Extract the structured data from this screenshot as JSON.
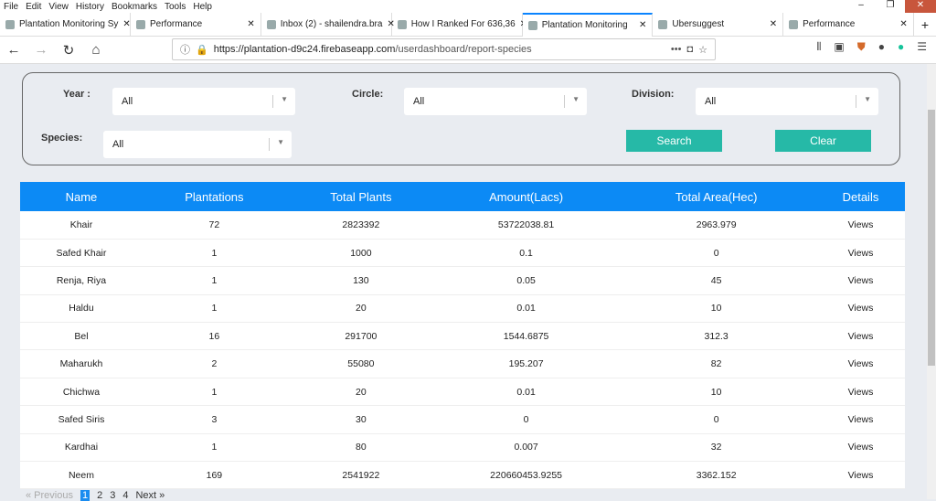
{
  "browser": {
    "menu": [
      "File",
      "Edit",
      "View",
      "History",
      "Bookmarks",
      "Tools",
      "Help"
    ],
    "tabs": [
      {
        "title": "Plantation Monitoring Sy",
        "active": false
      },
      {
        "title": "Performance",
        "active": false
      },
      {
        "title": "Inbox (2) - shailendra.bra",
        "active": false
      },
      {
        "title": "How I Ranked For 636,36",
        "active": false
      },
      {
        "title": "Plantation Monitoring",
        "active": true
      },
      {
        "title": "Ubersuggest",
        "active": false
      },
      {
        "title": "Performance",
        "active": false
      }
    ],
    "url_host": "https://plantation-d9c24.firebaseapp.com",
    "url_path": "/userdashboard/report-species"
  },
  "filters": {
    "year_label": "Year :",
    "year_value": "All",
    "circle_label": "Circle:",
    "circle_value": "All",
    "division_label": "Division:",
    "division_value": "All",
    "species_label": "Species:",
    "species_value": "All",
    "search": "Search",
    "clear": "Clear",
    "accent": "#26b9a7"
  },
  "table": {
    "header_color": "#0c8af5",
    "columns": [
      "Name",
      "Plantations",
      "Total Plants",
      "Amount(Lacs)",
      "Total Area(Hec)",
      "Details"
    ],
    "rows": [
      [
        "Khair",
        "72",
        "2823392",
        "53722038.81",
        "2963.979",
        "Views"
      ],
      [
        "Safed Khair",
        "1",
        "1000",
        "0.1",
        "0",
        "Views"
      ],
      [
        "Renja, Riya",
        "1",
        "130",
        "0.05",
        "45",
        "Views"
      ],
      [
        "Haldu",
        "1",
        "20",
        "0.01",
        "10",
        "Views"
      ],
      [
        "Bel",
        "16",
        "291700",
        "1544.6875",
        "312.3",
        "Views"
      ],
      [
        "Maharukh",
        "2",
        "55080",
        "195.207",
        "82",
        "Views"
      ],
      [
        "Chichwa",
        "1",
        "20",
        "0.01",
        "10",
        "Views"
      ],
      [
        "Safed Siris",
        "3",
        "30",
        "0",
        "0",
        "Views"
      ],
      [
        "Kardhai",
        "1",
        "80",
        "0.007",
        "32",
        "Views"
      ],
      [
        "Neem",
        "169",
        "2541922",
        "220660453.9255",
        "3362.152",
        "Views"
      ]
    ]
  },
  "pagination": {
    "previous": "« Previous",
    "pages": [
      "1",
      "2",
      "3",
      "4"
    ],
    "current": "1",
    "next": "Next »"
  }
}
